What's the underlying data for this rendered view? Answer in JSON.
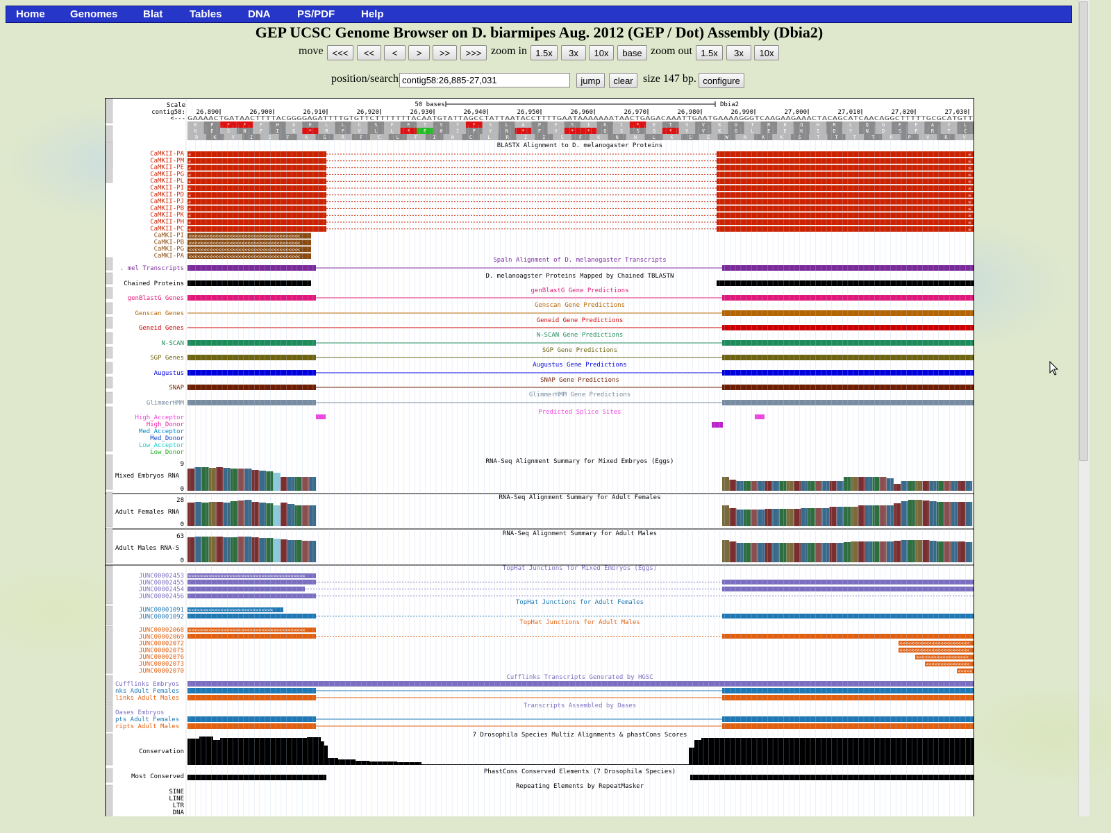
{
  "nav": {
    "items": [
      "Home",
      "Genomes",
      "Blat",
      "Tables",
      "DNA",
      "PS/PDF",
      "Help"
    ]
  },
  "title": "GEP UCSC Genome Browser on D. biarmipes Aug. 2012 (GEP / Dot) Assembly (Dbia2)",
  "controls": {
    "move_label": "move",
    "move_buttons": [
      "<<<",
      "<<",
      "<",
      ">",
      ">>",
      ">>>"
    ],
    "zoom_in_label": "zoom in",
    "zoom_in_buttons": [
      "1.5x",
      "3x",
      "10x",
      "base"
    ],
    "zoom_out_label": "zoom out",
    "zoom_out_buttons": [
      "1.5x",
      "3x",
      "10x"
    ],
    "position_label": "position/search",
    "position_value": "contig58:26,885-27,031",
    "jump": "jump",
    "clear": "clear",
    "size_text": "size 147 bp.",
    "configure": "configure"
  },
  "ruler": {
    "scale_label": "Scale",
    "chrom_label": "contig58:",
    "strand_label": "<---",
    "scale_text": "50 bases",
    "assembly": "Dbia2",
    "ticks": [
      "26,890",
      "26,900",
      "26,910",
      "26,920",
      "26,930",
      "26,940",
      "26,950",
      "26,960",
      "26,970",
      "26,980",
      "26,990",
      "27,000",
      "27,010",
      "27,020",
      "27,030"
    ],
    "dna": "GAAAACTGATAACTTTTACGGGGAGATTTTGTGTTCTTTTTTTACAATGTATTAGCCTATTAATACCTTTTGAATAAAAAAATAACTGAGACAAATTGAATGAAAAGGGTCAAGAAGAAACTACAGCATCAACAGGCTTTTTGCGCATGTT"
  },
  "tracks": {
    "blastx": {
      "title": "BLASTX Alignment to D. melanogaster Proteins",
      "items": [
        "CaMKII-PA",
        "CaMKII-PM",
        "CaMKII-PE",
        "CaMKII-PG",
        "CaMKII-PL",
        "CaMKII-PI",
        "CaMKII-PD",
        "CaMKII-PJ",
        "CaMKII-PB",
        "CaMKII-PK",
        "CaMKII-PH",
        "CaMKII-PC",
        "CaMKI-PI",
        "CaMKI-PB",
        "CaMKI-PG",
        "CaMKI-PA"
      ]
    },
    "spaln": {
      "label": ". mel Transcripts",
      "title": "Spaln Alignment of D. melanogaster Transcripts"
    },
    "chained": {
      "label": "Chained Proteins",
      "title": "D. melanoagster Proteins Mapped by Chained TBLASTN"
    },
    "genblast": {
      "label": "genBlastG Genes",
      "title": "genBlastG Gene Predictions"
    },
    "genscan": {
      "label": "Genscan Genes",
      "title": "Genscan Gene Predictions"
    },
    "geneid": {
      "label": "Geneid Genes",
      "title": "Geneid Gene Predictions"
    },
    "nscan": {
      "label": "N-SCAN",
      "title": "N-SCAN Gene Predictions"
    },
    "sgp": {
      "label": "SGP Genes",
      "title": "SGP Gene Predictions"
    },
    "augustus": {
      "label": "Augustus",
      "title": "Augustus Gene Predictions"
    },
    "snap": {
      "label": "SNAP",
      "title": "SNAP Gene Predictions"
    },
    "glimmer": {
      "label": "GlimmerHMM",
      "title": "GlimmerHMM Gene Predictions"
    },
    "splice": {
      "title": "Predicted Splice Sites",
      "items": [
        "High_Acceptor",
        "High_Donor",
        "Med_Acceptor",
        "Med_Donor",
        "Low_Acceptor",
        "Low_Donor"
      ]
    },
    "rna_embryo": {
      "label": "Mixed Embryos RNA",
      "title": "RNA-Seq Alignment Summary for Mixed Embryos (Eggs)",
      "max": "9",
      "min": "0"
    },
    "rna_female": {
      "label": "Adult Females RNA",
      "title": "RNA-Seq Alignment Summary for Adult Females",
      "max": "28",
      "min": "0"
    },
    "rna_male": {
      "label": "Adult Males RNA-S",
      "title": "RNA-Seq Alignment Summary for Adult Males",
      "max": "63",
      "min": "0"
    },
    "th_embryo": {
      "title": "TopHat Junctions for Mixed Embryos (Eggs)",
      "items": [
        "JUNC00002453",
        "JUNC00002455",
        "JUNC00002454",
        "JUNC00002456"
      ]
    },
    "th_female": {
      "title": "TopHat Junctions for Adult Females",
      "items": [
        "JUNC00001091",
        "JUNC00001092"
      ]
    },
    "th_male": {
      "title": "TopHat Junctions for Adult Males",
      "items": [
        "JUNC00002068",
        "JUNC00002069",
        "JUNC00002072",
        "JUNC00002075",
        "JUNC00002076",
        "JUNC00002073",
        "JUNC00002070"
      ]
    },
    "cufflinks": {
      "title": "Cufflinks Transcripts Generated by HGSC",
      "items": [
        "Cufflinks Embryos",
        "nks Adult Females",
        "links Adult Males"
      ]
    },
    "oases": {
      "title": "Transcripts Assembled by Oases",
      "items": [
        "Oases Embryos",
        "pts Adult Females",
        "ripts Adult Males"
      ]
    },
    "cons": {
      "label": "Conservation",
      "title": "7 Drosophila Species Multiz Alignments & phastCons Scores"
    },
    "mostcons": {
      "label": "Most Conserved",
      "title": "PhastCons Conserved Elements (7 Drosophila Species)"
    },
    "rmsk": {
      "title": "Repeating Elements by RepeatMasker",
      "items": [
        "SINE",
        "LINE",
        "LTR",
        "DNA"
      ]
    }
  },
  "colors": {
    "nav": "#2636c8",
    "blastx": "#cc2200",
    "camki": "#8a4b12",
    "spaln": "#7a2a99",
    "chained": "#000000",
    "genblast": "#e0187a",
    "genscan": "#b46400",
    "geneid": "#cc0000",
    "nscan": "#1e8c5a",
    "sgp": "#6e6410",
    "augustus": "#0000dd",
    "snap": "#6e1e00",
    "glimmer": "#788ca0",
    "splice": "#ee44dd",
    "splice_donor": "#bb22cc",
    "tophat_embryo": "#7b6ec0",
    "tophat_female": "#1f78b4",
    "tophat_male": "#e06010"
  }
}
